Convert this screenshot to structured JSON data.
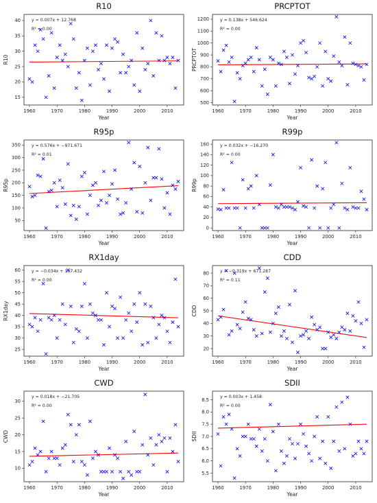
{
  "chart_data": [
    {
      "type": "scatter",
      "id": "R10",
      "title": "R10",
      "xlabel": "Year",
      "ylabel": "R10",
      "equation": "y = 0.007x + 12.768",
      "r2": "R² = 0.00",
      "xlim": [
        1958,
        2016
      ],
      "ylim": [
        12.5,
        42
      ],
      "xticks": [
        1960,
        1970,
        1980,
        1990,
        2000,
        2010
      ],
      "yticks": [
        15,
        20,
        25,
        30,
        35,
        40
      ],
      "marker_color": "#0000ff",
      "trend_color": "#ff0000",
      "trend": {
        "slope": 0.007,
        "intercept": 12.768
      },
      "x": [
        1960,
        1961,
        1962,
        1963,
        1964,
        1965,
        1966,
        1967,
        1968,
        1969,
        1970,
        1971,
        1972,
        1973,
        1974,
        1975,
        1976,
        1977,
        1978,
        1979,
        1980,
        1981,
        1982,
        1983,
        1984,
        1985,
        1986,
        1987,
        1988,
        1989,
        1990,
        1991,
        1992,
        1993,
        1994,
        1995,
        1996,
        1997,
        1998,
        1999,
        2000,
        2001,
        2002,
        2003,
        2004,
        2005,
        2006,
        2007,
        2008,
        2009,
        2010,
        2011,
        2012,
        2013,
        2014
      ],
      "y": [
        21,
        20,
        32,
        30,
        37,
        34,
        15,
        22,
        36,
        18,
        28,
        32,
        27,
        29,
        25,
        39,
        34,
        18,
        23,
        14,
        27,
        31,
        19,
        30,
        32,
        24,
        26,
        21,
        32,
        17,
        31,
        34,
        33,
        23,
        29,
        23,
        25,
        27,
        19,
        36,
        17,
        31,
        24,
        26,
        40,
        22,
        36,
        27,
        35,
        27,
        28,
        26,
        28,
        18,
        27
      ]
    },
    {
      "type": "scatter",
      "id": "PRCPTOT",
      "title": "PRCPTOT",
      "xlabel": "Year",
      "ylabel": "PRCPTOT",
      "equation": "y = 0.138x + 546.624",
      "r2": "R² = 0.00",
      "xlim": [
        1958,
        2016
      ],
      "ylim": [
        480,
        1240
      ],
      "xticks": [
        1960,
        1970,
        1980,
        1990,
        2000,
        2010
      ],
      "yticks": [
        500,
        600,
        700,
        800,
        900,
        1000,
        1100,
        1200
      ],
      "marker_color": "#0000ff",
      "trend_color": "#ff0000",
      "trend": {
        "slope": 0.138,
        "intercept": 546.624
      },
      "x": [
        1960,
        1961,
        1962,
        1963,
        1964,
        1965,
        1966,
        1967,
        1968,
        1969,
        1970,
        1971,
        1972,
        1973,
        1974,
        1975,
        1976,
        1977,
        1978,
        1979,
        1980,
        1981,
        1982,
        1983,
        1984,
        1985,
        1986,
        1987,
        1988,
        1989,
        1990,
        1991,
        1992,
        1993,
        1994,
        1995,
        1996,
        1997,
        1998,
        1999,
        2000,
        2001,
        2002,
        2003,
        2004,
        2005,
        2006,
        2007,
        2008,
        2009,
        2010,
        2011,
        2012,
        2013,
        2014
      ],
      "y": [
        850,
        760,
        940,
        980,
        840,
        880,
        510,
        750,
        700,
        810,
        830,
        860,
        880,
        760,
        960,
        860,
        640,
        780,
        570,
        880,
        860,
        640,
        830,
        820,
        930,
        880,
        660,
        900,
        740,
        810,
        1000,
        1020,
        920,
        710,
        700,
        720,
        800,
        1000,
        640,
        930,
        700,
        680,
        890,
        1220,
        840,
        810,
        1050,
        650,
        1000,
        830,
        820,
        810,
        800,
        690,
        820
      ]
    },
    {
      "type": "scatter",
      "id": "R95p",
      "title": "R95p",
      "xlabel": "Year",
      "ylabel": "R95p",
      "equation": "y = 0.576x + −971.671",
      "r2": "R² = 0.01",
      "xlim": [
        1958,
        2016
      ],
      "ylim": [
        10,
        370
      ],
      "xticks": [
        1960,
        1970,
        1980,
        1990,
        2000,
        2010
      ],
      "yticks": [
        50,
        100,
        150,
        200,
        250,
        300,
        350
      ],
      "marker_color": "#0000ff",
      "trend_color": "#ff0000",
      "trend": {
        "slope": 0.576,
        "intercept": -971.671
      },
      "x": [
        1960,
        1961,
        1962,
        1963,
        1964,
        1965,
        1966,
        1967,
        1968,
        1969,
        1970,
        1971,
        1972,
        1973,
        1974,
        1975,
        1976,
        1977,
        1978,
        1979,
        1980,
        1981,
        1982,
        1983,
        1984,
        1985,
        1986,
        1987,
        1988,
        1989,
        1990,
        1991,
        1992,
        1993,
        1994,
        1995,
        1996,
        1997,
        1998,
        1999,
        2000,
        2001,
        2002,
        2003,
        2004,
        2005,
        2006,
        2007,
        2008,
        2009,
        2010,
        2011,
        2012,
        2013,
        2014
      ],
      "y": [
        185,
        145,
        150,
        230,
        225,
        295,
        20,
        165,
        170,
        200,
        105,
        210,
        180,
        115,
        275,
        70,
        110,
        55,
        105,
        225,
        240,
        75,
        150,
        190,
        200,
        110,
        130,
        245,
        120,
        150,
        195,
        250,
        135,
        75,
        80,
        120,
        360,
        175,
        280,
        85,
        265,
        80,
        200,
        340,
        130,
        220,
        220,
        335,
        215,
        100,
        160,
        75,
        190,
        175,
        205
      ]
    },
    {
      "type": "scatter",
      "id": "R99p",
      "title": "R99p",
      "xlabel": "Year",
      "ylabel": "R99p",
      "equation": "y = 0.032x + −16.270",
      "r2": "R² = 0.00",
      "xlim": [
        1958,
        2016
      ],
      "ylim": [
        -5,
        168
      ],
      "xticks": [
        1960,
        1970,
        1980,
        1990,
        2000,
        2010
      ],
      "yticks": [
        0,
        20,
        40,
        60,
        80,
        100,
        120,
        140,
        160
      ],
      "marker_color": "#0000ff",
      "trend_color": "#ff0000",
      "trend": {
        "slope": 0.032,
        "intercept": -16.27
      },
      "x": [
        1960,
        1961,
        1962,
        1963,
        1964,
        1965,
        1966,
        1967,
        1968,
        1969,
        1970,
        1971,
        1972,
        1973,
        1974,
        1975,
        1976,
        1977,
        1978,
        1979,
        1980,
        1981,
        1982,
        1983,
        1984,
        1985,
        1986,
        1987,
        1988,
        1989,
        1990,
        1991,
        1992,
        1993,
        1994,
        1995,
        1996,
        1997,
        1998,
        1999,
        2000,
        2001,
        2002,
        2003,
        2004,
        2005,
        2006,
        2007,
        2008,
        2009,
        2010,
        2011,
        2012,
        2013,
        2014
      ],
      "y": [
        36,
        35,
        73,
        38,
        38,
        125,
        38,
        38,
        0,
        92,
        38,
        75,
        80,
        38,
        100,
        45,
        0,
        0,
        0,
        82,
        140,
        40,
        38,
        45,
        40,
        40,
        40,
        38,
        35,
        50,
        115,
        42,
        40,
        0,
        130,
        38,
        80,
        0,
        75,
        125,
        0,
        38,
        45,
        163,
        0,
        85,
        38,
        35,
        115,
        40,
        38,
        38,
        70,
        55,
        35
      ]
    },
    {
      "type": "scatter",
      "id": "RX1day",
      "title": "RX1day",
      "xlabel": "Year",
      "ylabel": "RX1day",
      "equation": "y = −0.034x + 107.432",
      "r2": "R² = 0.00",
      "xlim": [
        1958,
        2016
      ],
      "ylim": [
        22,
        62
      ],
      "xticks": [
        1960,
        1970,
        1980,
        1990,
        2000,
        2010
      ],
      "yticks": [
        25,
        30,
        35,
        40,
        45,
        50,
        55,
        60
      ],
      "marker_color": "#0000ff",
      "trend_color": "#ff0000",
      "trend": {
        "slope": -0.034,
        "intercept": 107.432
      },
      "x": [
        1960,
        1961,
        1962,
        1963,
        1964,
        1965,
        1966,
        1967,
        1968,
        1969,
        1970,
        1971,
        1972,
        1973,
        1974,
        1975,
        1976,
        1977,
        1978,
        1979,
        1980,
        1981,
        1982,
        1983,
        1984,
        1985,
        1986,
        1987,
        1988,
        1989,
        1990,
        1991,
        1992,
        1993,
        1994,
        1995,
        1996,
        1997,
        1998,
        1999,
        2000,
        2001,
        2002,
        2003,
        2004,
        2005,
        2006,
        2007,
        2008,
        2009,
        2010,
        2011,
        2012,
        2013,
        2014
      ],
      "y": [
        36,
        35,
        39,
        33,
        38,
        54,
        23,
        39,
        38,
        40,
        30,
        38,
        45,
        36,
        60,
        44,
        28,
        34,
        33,
        44,
        54,
        30,
        45,
        41,
        40,
        38,
        38,
        27,
        50,
        35,
        44,
        43,
        30,
        48,
        30,
        38,
        41,
        33,
        45,
        37,
        50,
        27,
        45,
        28,
        44,
        39,
        30,
        36,
        40,
        39,
        33,
        28,
        37,
        56,
        35
      ]
    },
    {
      "type": "scatter",
      "id": "CDD",
      "title": "CDD",
      "xlabel": "Year",
      "ylabel": "CDD",
      "equation": "y = −0.319x + 671.287",
      "r2": "R² = 0.11",
      "xlim": [
        1958,
        2016
      ],
      "ylim": [
        14,
        86
      ],
      "xticks": [
        1960,
        1970,
        1980,
        1990,
        2000,
        2010
      ],
      "yticks": [
        20,
        30,
        40,
        50,
        60,
        70,
        80
      ],
      "marker_color": "#0000ff",
      "trend_color": "#ff0000",
      "trend": {
        "slope": -0.319,
        "intercept": 671.287
      },
      "x": [
        1960,
        1961,
        1962,
        1963,
        1964,
        1965,
        1966,
        1967,
        1968,
        1969,
        1970,
        1971,
        1972,
        1973,
        1974,
        1975,
        1976,
        1977,
        1978,
        1979,
        1980,
        1981,
        1982,
        1983,
        1984,
        1985,
        1986,
        1987,
        1988,
        1989,
        1990,
        1991,
        1992,
        1993,
        1994,
        1995,
        1996,
        1997,
        1998,
        1999,
        2000,
        2001,
        2002,
        2003,
        2004,
        2005,
        2006,
        2007,
        2008,
        2009,
        2010,
        2011,
        2012,
        2013,
        2014
      ],
      "y": [
        43,
        45,
        51,
        82,
        31,
        34,
        80,
        39,
        36,
        49,
        57,
        44,
        43,
        35,
        30,
        84,
        32,
        65,
        76,
        33,
        40,
        48,
        53,
        30,
        34,
        28,
        55,
        25,
        66,
        17,
        30,
        31,
        34,
        28,
        45,
        39,
        35,
        37,
        20,
        20,
        33,
        29,
        31,
        28,
        33,
        37,
        35,
        48,
        34,
        46,
        42,
        57,
        40,
        21,
        43
      ]
    },
    {
      "type": "scatter",
      "id": "CWD",
      "title": "CWD",
      "xlabel": "Year",
      "ylabel": "CWD",
      "equation": "y = 0.018x + −21.705",
      "r2": "R² = 0.00",
      "xlim": [
        1958,
        2016
      ],
      "ylim": [
        6,
        33
      ],
      "xticks": [
        1960,
        1970,
        1980,
        1990,
        2000,
        2010
      ],
      "yticks": [
        10,
        15,
        20,
        25,
        30
      ],
      "marker_color": "#0000ff",
      "trend_color": "#ff0000",
      "trend": {
        "slope": 0.018,
        "intercept": -21.705
      },
      "x": [
        1960,
        1961,
        1962,
        1963,
        1964,
        1965,
        1966,
        1967,
        1968,
        1969,
        1970,
        1971,
        1972,
        1973,
        1974,
        1975,
        1976,
        1977,
        1978,
        1979,
        1980,
        1981,
        1982,
        1983,
        1984,
        1985,
        1986,
        1987,
        1988,
        1989,
        1990,
        1991,
        1992,
        1993,
        1994,
        1995,
        1996,
        1997,
        1998,
        1999,
        2000,
        2001,
        2002,
        2003,
        2004,
        2005,
        2006,
        2007,
        2008,
        2009,
        2010,
        2011,
        2012,
        2013,
        2014
      ],
      "y": [
        11,
        12,
        16,
        14,
        15,
        24,
        9,
        13,
        15,
        13,
        13,
        11,
        16,
        17,
        26,
        23,
        12,
        20,
        23,
        12,
        11,
        8,
        24,
        13,
        15,
        14,
        9,
        9,
        9,
        16,
        9,
        14,
        13,
        9,
        7,
        18,
        9,
        8,
        21,
        9,
        9,
        17,
        32,
        14,
        19,
        11,
        17,
        20,
        18,
        19,
        9,
        19,
        15,
        23,
        12
      ]
    },
    {
      "type": "scatter",
      "id": "SDII",
      "title": "SDII",
      "xlabel": "Year",
      "ylabel": "SDII",
      "equation": "y = 0.003x + 1.458",
      "r2": "R² = 0.00",
      "xlim": [
        1958,
        2016
      ],
      "ylim": [
        5.15,
        8.85
      ],
      "xticks": [
        1960,
        1970,
        1980,
        1990,
        2000,
        2010
      ],
      "yticks": [
        5.5,
        6.0,
        6.5,
        7.0,
        7.5,
        8.0,
        8.5
      ],
      "marker_color": "#0000ff",
      "trend_color": "#ff0000",
      "trend": {
        "slope": 0.003,
        "intercept": 1.458
      },
      "x": [
        1960,
        1961,
        1962,
        1963,
        1964,
        1965,
        1966,
        1967,
        1968,
        1969,
        1970,
        1971,
        1972,
        1973,
        1974,
        1975,
        1976,
        1977,
        1978,
        1979,
        1980,
        1981,
        1982,
        1983,
        1984,
        1985,
        1986,
        1987,
        1988,
        1989,
        1990,
        1991,
        1992,
        1993,
        1994,
        1995,
        1996,
        1997,
        1998,
        1999,
        2000,
        2001,
        2002,
        2003,
        2004,
        2005,
        2006,
        2007,
        2008,
        2009,
        2010,
        2011,
        2012,
        2013,
        2014
      ],
      "y": [
        7.1,
        5.8,
        7.8,
        7.5,
        7.9,
        7.3,
        5.3,
        6.5,
        6.2,
        7.0,
        7.0,
        7.5,
        6.9,
        6.9,
        6.6,
        7.3,
        6.4,
        6.9,
        6.0,
        8.3,
        7.2,
        5.6,
        7.5,
        6.4,
        5.9,
        6.2,
        6.9,
        6.7,
        6.1,
        6.7,
        7.5,
        7.1,
        6.6,
        6.3,
        6.0,
        7.0,
        7.8,
        6.1,
        6.8,
        5.9,
        7.8,
        5.7,
        6.8,
        8.2,
        6.4,
        8.4,
        6.5,
        8.6,
        7.5,
        6.2,
        6.3,
        6.8,
        6.5,
        6.3,
        6.8
      ]
    }
  ]
}
